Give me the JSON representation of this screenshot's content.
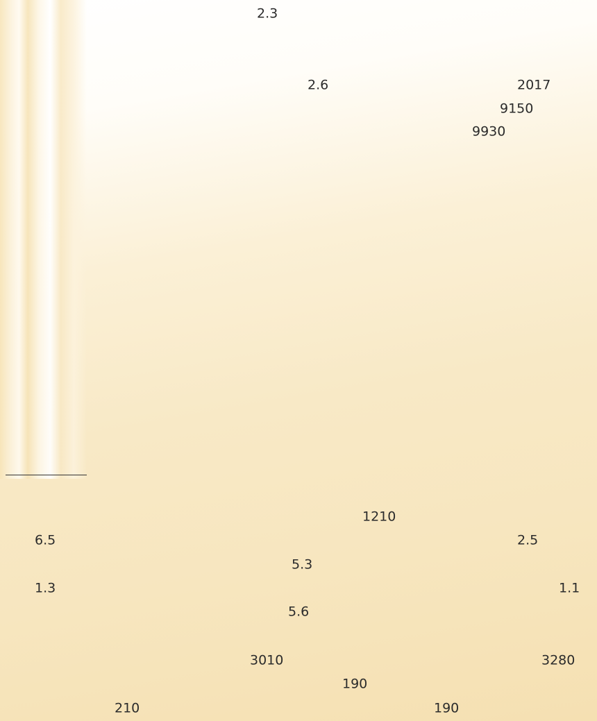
{
  "texts": [
    "2.3",
    "2.6",
    "2017",
    "9150",
    "9930",
    "1210",
    "6.5",
    "2.5",
    "5.3",
    "1.3",
    "1.1",
    "5.6",
    "3010",
    "3280",
    "190",
    "210",
    "190"
  ]
}
